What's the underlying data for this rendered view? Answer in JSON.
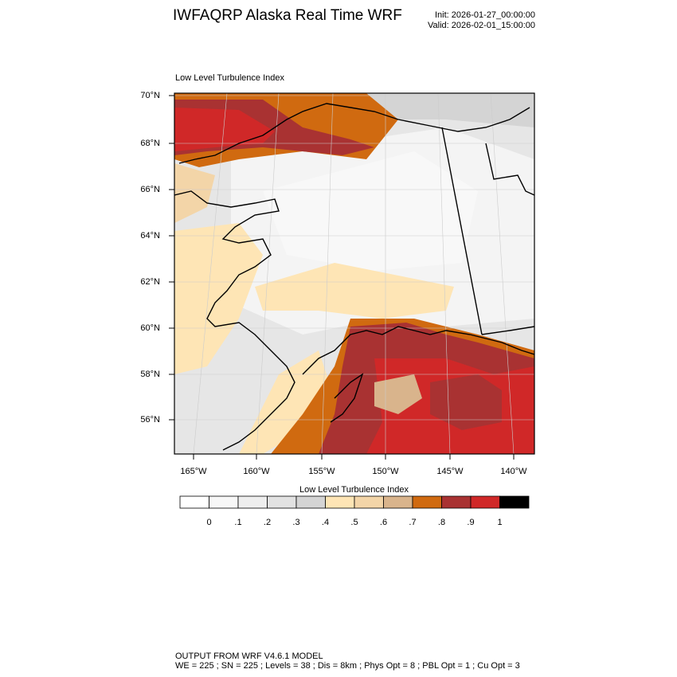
{
  "header": {
    "title": "IWFAQRP Alaska Real Time WRF",
    "init": "Init: 2026-01-27_00:00:00",
    "valid": "Valid: 2026-02-01_15:00:00"
  },
  "map": {
    "plot_title": "Low Level Turbulence Index",
    "lat_labels": [
      "70°N",
      "68°N",
      "66°N",
      "64°N",
      "62°N",
      "60°N",
      "58°N",
      "56°N"
    ],
    "lon_labels": [
      "165°W",
      "160°W",
      "155°W",
      "150°W",
      "145°W",
      "140°W"
    ]
  },
  "colorbar": {
    "title": "Low Level Turbulence Index",
    "labels": [
      "0",
      ".1",
      ".2",
      ".3",
      ".4",
      ".5",
      ".6",
      ".7",
      ".8",
      ".9",
      "1"
    ],
    "colors": [
      "#ffffff",
      "#f7f7f7",
      "#eeeeee",
      "#e2e2e2",
      "#d4d4d4",
      "#fee5b5",
      "#f3d5a8",
      "#d9b48c",
      "#d06a10",
      "#a93232",
      "#d02828",
      "#000000"
    ]
  },
  "footer": {
    "line1": "OUTPUT FROM WRF V4.6.1 MODEL",
    "line2": "WE = 225 ; SN = 225 ; Levels = 38 ; Dis = 8km ; Phys Opt = 8 ; PBL Opt = 1 ; Cu Opt = 3"
  }
}
